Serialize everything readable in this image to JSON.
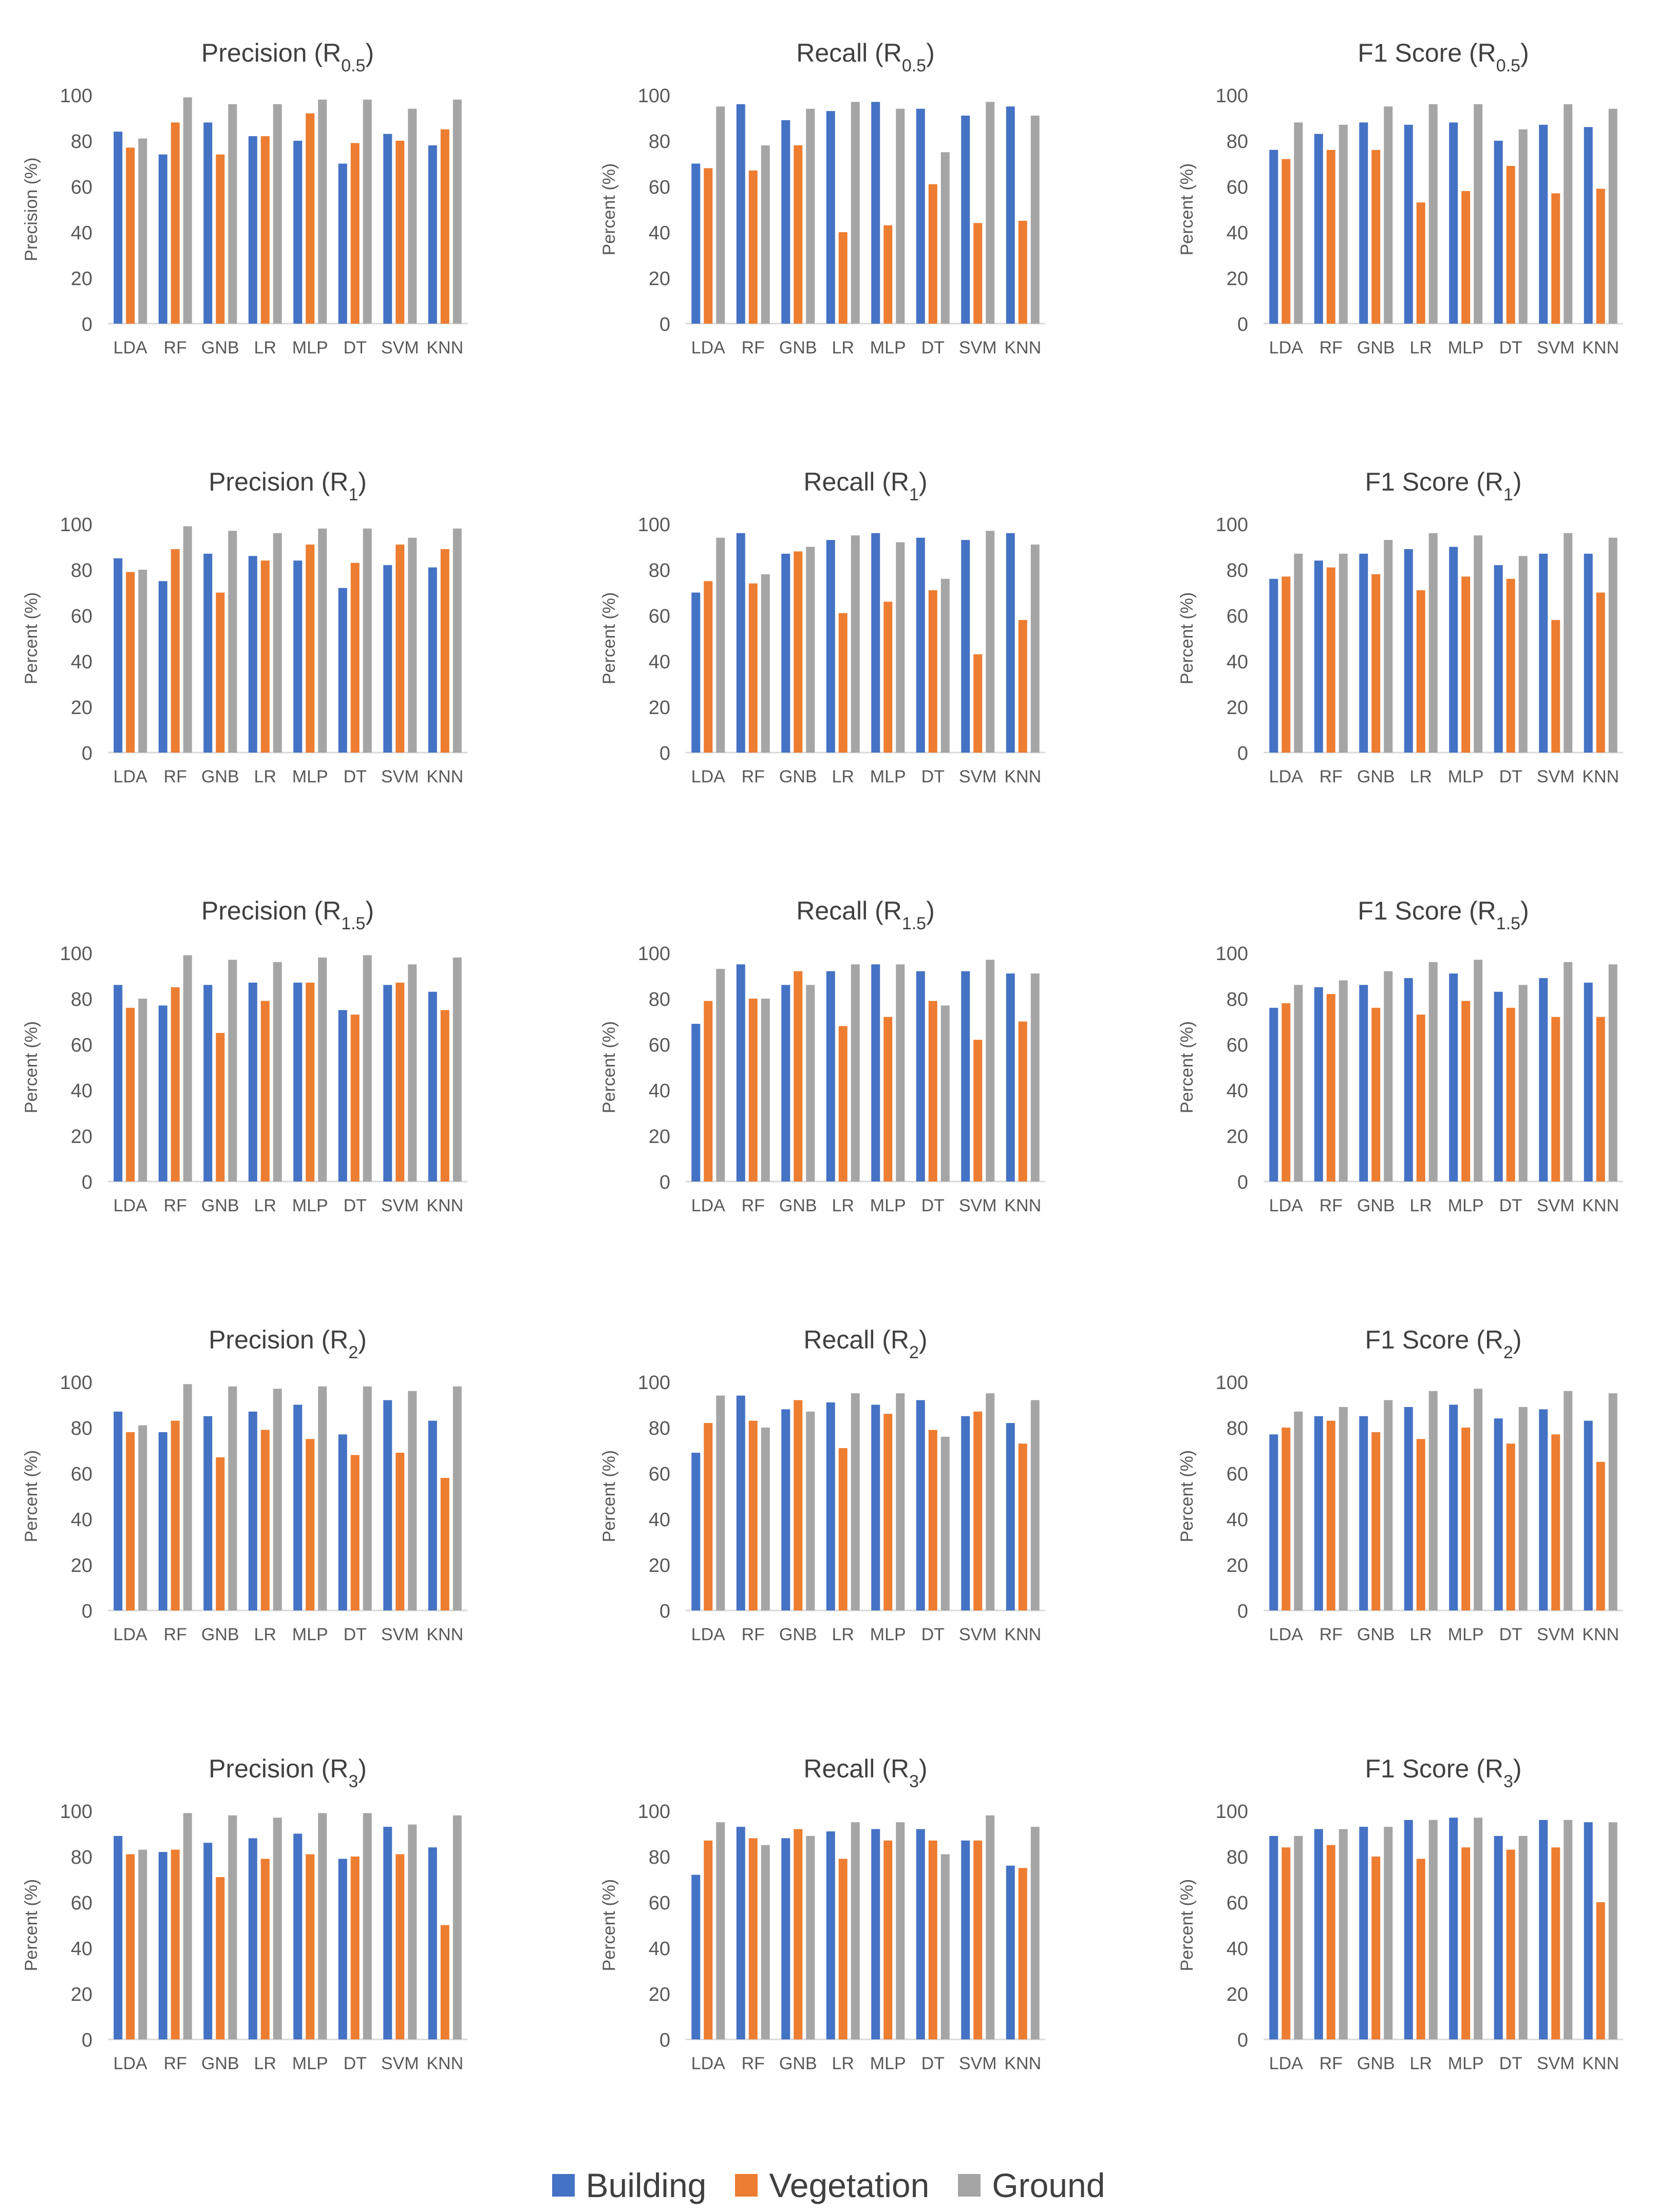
{
  "colors": {
    "Building": "#4472c4",
    "Vegetation": "#ed7d31",
    "Ground": "#a5a5a5"
  },
  "legend": {
    "items": [
      "Building",
      "Vegetation",
      "Ground"
    ],
    "placement": "bottom-center"
  },
  "chart_data": [
    {
      "type": "bar",
      "title_base": "Precision",
      "title_sub": "0.5",
      "ylabel": "Precision (%)",
      "ylim": [
        0,
        100
      ],
      "yticks": [
        0,
        20,
        40,
        60,
        80,
        100
      ],
      "grid": false,
      "categories": [
        "LDA",
        "RF",
        "GNB",
        "LR",
        "MLP",
        "DT",
        "SVM",
        "KNN"
      ],
      "series": [
        {
          "name": "Building",
          "values": [
            84,
            74,
            88,
            82,
            80,
            70,
            83,
            78
          ]
        },
        {
          "name": "Vegetation",
          "values": [
            77,
            88,
            74,
            82,
            92,
            79,
            80,
            85
          ]
        },
        {
          "name": "Ground",
          "values": [
            81,
            99,
            96,
            96,
            98,
            98,
            94,
            98
          ]
        }
      ]
    },
    {
      "type": "bar",
      "title_base": "Recall",
      "title_sub": "0.5",
      "ylabel": "Percent (%)",
      "ylim": [
        0,
        100
      ],
      "yticks": [
        0,
        20,
        40,
        60,
        80,
        100
      ],
      "grid": false,
      "categories": [
        "LDA",
        "RF",
        "GNB",
        "LR",
        "MLP",
        "DT",
        "SVM",
        "KNN"
      ],
      "series": [
        {
          "name": "Building",
          "values": [
            70,
            96,
            89,
            93,
            97,
            94,
            91,
            95
          ]
        },
        {
          "name": "Vegetation",
          "values": [
            68,
            67,
            78,
            40,
            43,
            61,
            44,
            45
          ]
        },
        {
          "name": "Ground",
          "values": [
            95,
            78,
            94,
            97,
            94,
            75,
            97,
            91
          ]
        }
      ]
    },
    {
      "type": "bar",
      "title_base": "F1 Score",
      "title_sub": "0.5",
      "ylabel": "Percent (%)",
      "ylim": [
        0,
        100
      ],
      "yticks": [
        0,
        20,
        40,
        60,
        80,
        100
      ],
      "grid": false,
      "categories": [
        "LDA",
        "RF",
        "GNB",
        "LR",
        "MLP",
        "DT",
        "SVM",
        "KNN"
      ],
      "series": [
        {
          "name": "Building",
          "values": [
            76,
            83,
            88,
            87,
            88,
            80,
            87,
            86
          ]
        },
        {
          "name": "Vegetation",
          "values": [
            72,
            76,
            76,
            53,
            58,
            69,
            57,
            59
          ]
        },
        {
          "name": "Ground",
          "values": [
            88,
            87,
            95,
            96,
            96,
            85,
            96,
            94
          ]
        }
      ]
    },
    {
      "type": "bar",
      "title_base": "Precision",
      "title_sub": "1",
      "ylabel": "Percent (%)",
      "ylim": [
        0,
        100
      ],
      "yticks": [
        0,
        20,
        40,
        60,
        80,
        100
      ],
      "grid": false,
      "categories": [
        "LDA",
        "RF",
        "GNB",
        "LR",
        "MLP",
        "DT",
        "SVM",
        "KNN"
      ],
      "series": [
        {
          "name": "Building",
          "values": [
            85,
            75,
            87,
            86,
            84,
            72,
            82,
            81
          ]
        },
        {
          "name": "Vegetation",
          "values": [
            79,
            89,
            70,
            84,
            91,
            83,
            91,
            89
          ]
        },
        {
          "name": "Ground",
          "values": [
            80,
            99,
            97,
            96,
            98,
            98,
            94,
            98
          ]
        }
      ]
    },
    {
      "type": "bar",
      "title_base": "Recall",
      "title_sub": "1",
      "ylabel": "Percent (%)",
      "ylim": [
        0,
        100
      ],
      "yticks": [
        0,
        20,
        40,
        60,
        80,
        100
      ],
      "grid": false,
      "categories": [
        "LDA",
        "RF",
        "GNB",
        "LR",
        "MLP",
        "DT",
        "SVM",
        "KNN"
      ],
      "series": [
        {
          "name": "Building",
          "values": [
            70,
            96,
            87,
            93,
            96,
            94,
            93,
            96
          ]
        },
        {
          "name": "Vegetation",
          "values": [
            75,
            74,
            88,
            61,
            66,
            71,
            43,
            58
          ]
        },
        {
          "name": "Ground",
          "values": [
            94,
            78,
            90,
            95,
            92,
            76,
            97,
            91
          ]
        }
      ]
    },
    {
      "type": "bar",
      "title_base": "F1 Score",
      "title_sub": "1",
      "ylabel": "Percent (%)",
      "ylim": [
        0,
        100
      ],
      "yticks": [
        0,
        20,
        40,
        60,
        80,
        100
      ],
      "grid": false,
      "categories": [
        "LDA",
        "RF",
        "GNB",
        "LR",
        "MLP",
        "DT",
        "SVM",
        "KNN"
      ],
      "series": [
        {
          "name": "Building",
          "values": [
            76,
            84,
            87,
            89,
            90,
            82,
            87,
            87
          ]
        },
        {
          "name": "Vegetation",
          "values": [
            77,
            81,
            78,
            71,
            77,
            76,
            58,
            70
          ]
        },
        {
          "name": "Ground",
          "values": [
            87,
            87,
            93,
            96,
            95,
            86,
            96,
            94
          ]
        }
      ]
    },
    {
      "type": "bar",
      "title_base": "Precision",
      "title_sub": "1.5",
      "ylabel": "Percent (%)",
      "ylim": [
        0,
        100
      ],
      "yticks": [
        0,
        20,
        40,
        60,
        80,
        100
      ],
      "grid": false,
      "categories": [
        "LDA",
        "RF",
        "GNB",
        "LR",
        "MLP",
        "DT",
        "SVM",
        "KNN"
      ],
      "series": [
        {
          "name": "Building",
          "values": [
            86,
            77,
            86,
            87,
            87,
            75,
            86,
            83
          ]
        },
        {
          "name": "Vegetation",
          "values": [
            76,
            85,
            65,
            79,
            87,
            73,
            87,
            75
          ]
        },
        {
          "name": "Ground",
          "values": [
            80,
            99,
            97,
            96,
            98,
            99,
            95,
            98
          ]
        }
      ]
    },
    {
      "type": "bar",
      "title_base": "Recall",
      "title_sub": "1.5",
      "ylabel": "Percent (%)",
      "ylim": [
        0,
        100
      ],
      "yticks": [
        0,
        20,
        40,
        60,
        80,
        100
      ],
      "grid": false,
      "categories": [
        "LDA",
        "RF",
        "GNB",
        "LR",
        "MLP",
        "DT",
        "SVM",
        "KNN"
      ],
      "series": [
        {
          "name": "Building",
          "values": [
            69,
            95,
            86,
            92,
            95,
            92,
            92,
            91
          ]
        },
        {
          "name": "Vegetation",
          "values": [
            79,
            80,
            92,
            68,
            72,
            79,
            62,
            70
          ]
        },
        {
          "name": "Ground",
          "values": [
            93,
            80,
            86,
            95,
            95,
            77,
            97,
            91
          ]
        }
      ]
    },
    {
      "type": "bar",
      "title_base": "F1 Score",
      "title_sub": "1.5",
      "ylabel": "Percent (%)",
      "ylim": [
        0,
        100
      ],
      "yticks": [
        0,
        20,
        40,
        60,
        80,
        100
      ],
      "grid": false,
      "categories": [
        "LDA",
        "RF",
        "GNB",
        "LR",
        "MLP",
        "DT",
        "SVM",
        "KNN"
      ],
      "series": [
        {
          "name": "Building",
          "values": [
            76,
            85,
            86,
            89,
            91,
            83,
            89,
            87
          ]
        },
        {
          "name": "Vegetation",
          "values": [
            78,
            82,
            76,
            73,
            79,
            76,
            72,
            72
          ]
        },
        {
          "name": "Ground",
          "values": [
            86,
            88,
            92,
            96,
            97,
            86,
            96,
            95
          ]
        }
      ]
    },
    {
      "type": "bar",
      "title_base": "Precision",
      "title_sub": "2",
      "ylabel": "Percent (%)",
      "ylim": [
        0,
        100
      ],
      "yticks": [
        0,
        20,
        40,
        60,
        80,
        100
      ],
      "grid": false,
      "categories": [
        "LDA",
        "RF",
        "GNB",
        "LR",
        "MLP",
        "DT",
        "SVM",
        "KNN"
      ],
      "series": [
        {
          "name": "Building",
          "values": [
            87,
            78,
            85,
            87,
            90,
            77,
            92,
            83
          ]
        },
        {
          "name": "Vegetation",
          "values": [
            78,
            83,
            67,
            79,
            75,
            68,
            69,
            58
          ]
        },
        {
          "name": "Ground",
          "values": [
            81,
            99,
            98,
            97,
            98,
            98,
            96,
            98
          ]
        }
      ]
    },
    {
      "type": "bar",
      "title_base": "Recall",
      "title_sub": "2",
      "ylabel": "Percent (%)",
      "ylim": [
        0,
        100
      ],
      "yticks": [
        0,
        20,
        40,
        60,
        80,
        100
      ],
      "grid": false,
      "categories": [
        "LDA",
        "RF",
        "GNB",
        "LR",
        "MLP",
        "DT",
        "SVM",
        "KNN"
      ],
      "series": [
        {
          "name": "Building",
          "values": [
            69,
            94,
            88,
            91,
            90,
            92,
            85,
            82
          ]
        },
        {
          "name": "Vegetation",
          "values": [
            82,
            83,
            92,
            71,
            86,
            79,
            87,
            73
          ]
        },
        {
          "name": "Ground",
          "values": [
            94,
            80,
            87,
            95,
            95,
            76,
            95,
            92
          ]
        }
      ]
    },
    {
      "type": "bar",
      "title_base": "F1 Score",
      "title_sub": "2",
      "ylabel": "Percent (%)",
      "ylim": [
        0,
        100
      ],
      "yticks": [
        0,
        20,
        40,
        60,
        80,
        100
      ],
      "grid": false,
      "categories": [
        "LDA",
        "RF",
        "GNB",
        "LR",
        "MLP",
        "DT",
        "SVM",
        "KNN"
      ],
      "series": [
        {
          "name": "Building",
          "values": [
            77,
            85,
            85,
            89,
            90,
            84,
            88,
            83
          ]
        },
        {
          "name": "Vegetation",
          "values": [
            80,
            83,
            78,
            75,
            80,
            73,
            77,
            65
          ]
        },
        {
          "name": "Ground",
          "values": [
            87,
            89,
            92,
            96,
            97,
            89,
            96,
            95
          ]
        }
      ]
    },
    {
      "type": "bar",
      "title_base": "Precision",
      "title_sub": "3",
      "ylabel": "Percent (%)",
      "ylim": [
        0,
        100
      ],
      "yticks": [
        0,
        20,
        40,
        60,
        80,
        100
      ],
      "grid": false,
      "categories": [
        "LDA",
        "RF",
        "GNB",
        "LR",
        "MLP",
        "DT",
        "SVM",
        "KNN"
      ],
      "series": [
        {
          "name": "Building",
          "values": [
            89,
            82,
            86,
            88,
            90,
            79,
            93,
            84
          ]
        },
        {
          "name": "Vegetation",
          "values": [
            81,
            83,
            71,
            79,
            81,
            80,
            81,
            50
          ]
        },
        {
          "name": "Ground",
          "values": [
            83,
            99,
            98,
            97,
            99,
            99,
            94,
            98
          ]
        }
      ]
    },
    {
      "type": "bar",
      "title_base": "Recall",
      "title_sub": "3",
      "ylabel": "Percent (%)",
      "ylim": [
        0,
        100
      ],
      "yticks": [
        0,
        20,
        40,
        60,
        80,
        100
      ],
      "grid": false,
      "categories": [
        "LDA",
        "RF",
        "GNB",
        "LR",
        "MLP",
        "DT",
        "SVM",
        "KNN"
      ],
      "series": [
        {
          "name": "Building",
          "values": [
            72,
            93,
            88,
            91,
            92,
            92,
            87,
            76
          ]
        },
        {
          "name": "Vegetation",
          "values": [
            87,
            88,
            92,
            79,
            87,
            87,
            87,
            75
          ]
        },
        {
          "name": "Ground",
          "values": [
            95,
            85,
            89,
            95,
            95,
            81,
            98,
            93
          ]
        }
      ]
    },
    {
      "type": "bar",
      "title_base": "F1 Score",
      "title_sub": "3",
      "ylabel": "Percent (%)",
      "ylim": [
        0,
        100
      ],
      "yticks": [
        0,
        20,
        40,
        60,
        80,
        100
      ],
      "grid": false,
      "categories": [
        "LDA",
        "RF",
        "GNB",
        "LR",
        "MLP",
        "DT",
        "SVM",
        "KNN"
      ],
      "series": [
        {
          "name": "Building",
          "values": [
            89,
            92,
            93,
            96,
            97,
            89,
            96,
            95
          ]
        },
        {
          "name": "Vegetation",
          "values": [
            84,
            85,
            80,
            79,
            84,
            83,
            84,
            60
          ]
        },
        {
          "name": "Ground",
          "values": [
            89,
            92,
            93,
            96,
            97,
            89,
            96,
            95
          ]
        }
      ]
    }
  ]
}
